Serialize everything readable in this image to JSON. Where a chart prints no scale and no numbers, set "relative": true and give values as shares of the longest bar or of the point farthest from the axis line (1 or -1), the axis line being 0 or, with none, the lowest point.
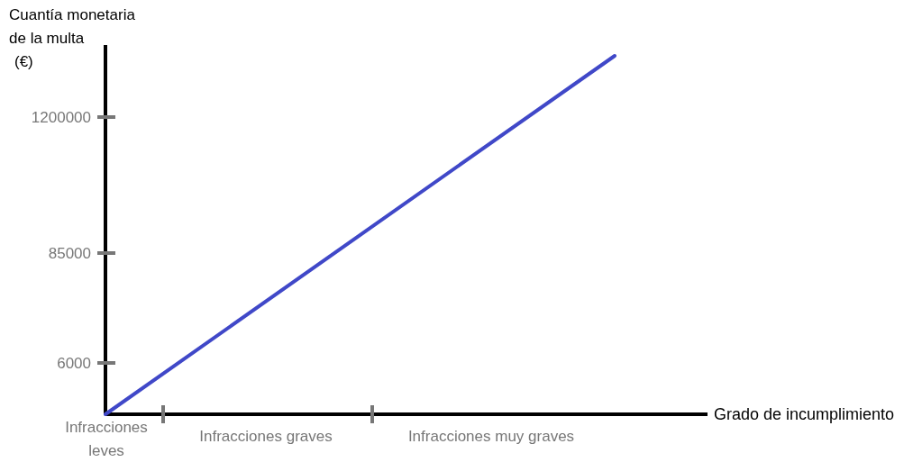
{
  "chart_data": {
    "type": "line",
    "relative": true,
    "xlabel": "Grado de incumplimiento",
    "ylabel": "Cuantía monetaria\nde la multa\n(€)",
    "categories": [
      null,
      null
    ],
    "annotations": [
      "6000",
      "85000",
      "1200000",
      "Infracciones leves",
      "Infracciones graves",
      "Infracciones muy graves"
    ],
    "series": [
      {
        "color": "#4048c8",
        "values": [
          0,
          1
        ]
      }
    ]
  }
}
